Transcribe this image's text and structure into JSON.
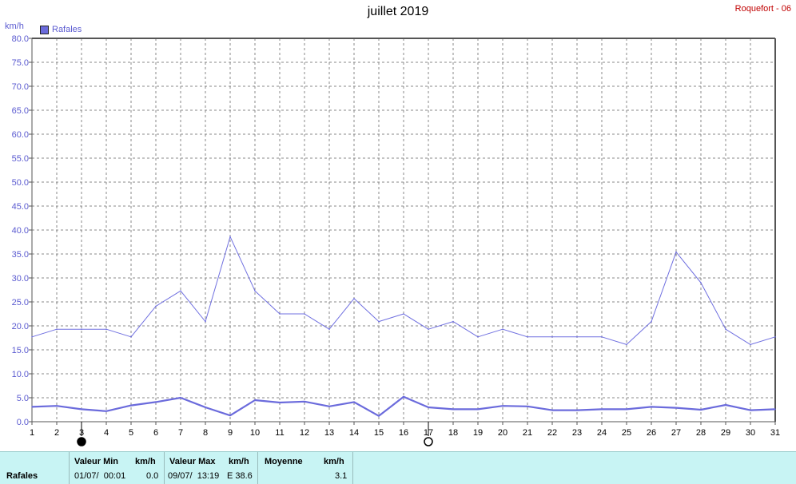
{
  "header": {
    "title": "juillet 2019",
    "station": "Roquefort - 06",
    "unit": "km/h"
  },
  "legend": {
    "label": "Rafales",
    "color": "#6b6bdc"
  },
  "stats": {
    "row_label": "Rafales",
    "min_header": "Valeur Min",
    "min_unit": "km/h",
    "min_date": "01/07/  00:01",
    "min_value": "0.0",
    "max_header": "Valeur Max",
    "max_unit": "km/h",
    "max_date": "09/07/  13:19",
    "max_dir": "E 38.6",
    "avg_header": "Moyenne",
    "avg_unit": "km/h",
    "avg_value": "3.1"
  },
  "moon_phases": [
    {
      "day": 3,
      "phase": "new-moon-icon"
    },
    {
      "day": 17,
      "phase": "full-moon-icon"
    }
  ],
  "chart_data": {
    "type": "line",
    "title": "juillet 2019",
    "ylabel": "km/h",
    "xlabel": "",
    "xlim": [
      1,
      31
    ],
    "ylim": [
      0,
      80
    ],
    "yticks": [
      "0.0",
      "5.0",
      "10.0",
      "15.0",
      "20.0",
      "25.0",
      "30.0",
      "35.0",
      "40.0",
      "45.0",
      "50.0",
      "55.0",
      "60.0",
      "65.0",
      "70.0",
      "75.0",
      "80.0"
    ],
    "x": [
      1,
      2,
      3,
      4,
      5,
      6,
      7,
      8,
      9,
      10,
      11,
      12,
      13,
      14,
      15,
      16,
      17,
      18,
      19,
      20,
      21,
      22,
      23,
      24,
      25,
      26,
      27,
      28,
      29,
      30,
      31
    ],
    "grid": true,
    "legend_position": "top-left",
    "series": [
      {
        "name": "Rafales",
        "color": "#7070e0",
        "width": 1,
        "values": [
          17.7,
          19.3,
          19.3,
          19.3,
          17.7,
          24.1,
          27.3,
          20.9,
          38.6,
          27.3,
          22.5,
          22.5,
          19.3,
          25.7,
          20.9,
          22.5,
          19.3,
          20.9,
          17.7,
          19.3,
          17.7,
          17.7,
          17.7,
          17.7,
          16.1,
          20.9,
          35.4,
          29.0,
          19.3,
          16.1,
          17.7
        ]
      },
      {
        "color": "#6b6bdc",
        "width": 2.2,
        "values": [
          3.1,
          3.3,
          2.6,
          2.2,
          3.4,
          4.1,
          5.0,
          3.0,
          1.3,
          4.5,
          4.0,
          4.2,
          3.2,
          4.1,
          1.2,
          5.2,
          3.0,
          2.6,
          2.6,
          3.3,
          3.2,
          2.4,
          2.4,
          2.6,
          2.6,
          3.1,
          2.9,
          2.5,
          3.5,
          2.4,
          2.6
        ]
      }
    ]
  }
}
